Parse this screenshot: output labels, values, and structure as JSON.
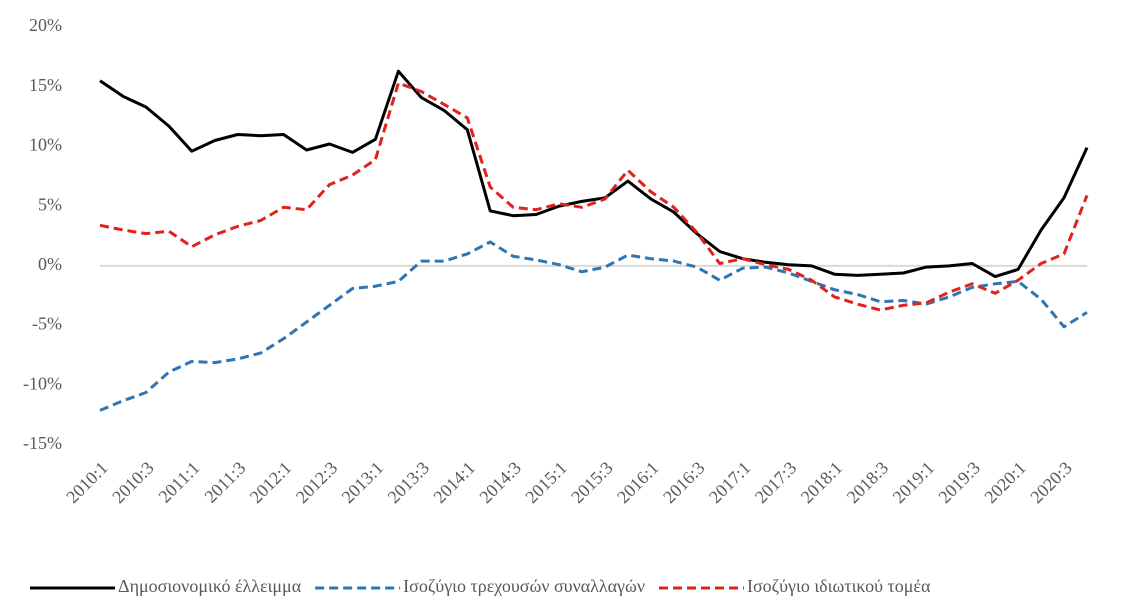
{
  "chart_data": {
    "type": "line",
    "categories": [
      "2010:1",
      null,
      "2010:3",
      null,
      "2011:1",
      null,
      "2011:3",
      null,
      "2012:1",
      null,
      "2012:3",
      null,
      "2013:1",
      null,
      "2013:3",
      null,
      "2014:1",
      null,
      "2014:3",
      null,
      "2015:1",
      null,
      "2015:3",
      null,
      "2016:1",
      null,
      "2016:3",
      null,
      "2017:1",
      null,
      "2017:3",
      null,
      "2018:1",
      null,
      "2018:3",
      null,
      "2019:1",
      null,
      "2019:3",
      null,
      "2020:1",
      null,
      "2020:3",
      null
    ],
    "series": [
      {
        "name": "Δημοσιονομικό έλλειμμα",
        "color": "#000000",
        "dashed": false,
        "values": [
          15.5,
          14.2,
          13.3,
          11.7,
          9.6,
          10.5,
          11.0,
          10.9,
          11.0,
          9.7,
          10.2,
          9.5,
          10.6,
          16.3,
          14.1,
          13.0,
          11.4,
          4.6,
          4.2,
          4.3,
          5.0,
          5.4,
          5.7,
          7.1,
          5.6,
          4.5,
          2.7,
          1.2,
          0.6,
          0.3,
          0.1,
          0.0,
          -0.7,
          -0.8,
          -0.7,
          -0.6,
          -0.1,
          0.0,
          0.2,
          -0.9,
          -0.3,
          3.0,
          5.7,
          9.9
        ]
      },
      {
        "name": "Ισοζύγιο τρεχουσών συναλλαγών",
        "color": "#2e75b6",
        "dashed": true,
        "values": [
          -12.1,
          -11.3,
          -10.6,
          -8.9,
          -8.0,
          -8.1,
          -7.8,
          -7.3,
          -6.1,
          -4.7,
          -3.3,
          -1.9,
          -1.7,
          -1.3,
          0.4,
          0.4,
          1.0,
          2.0,
          0.8,
          0.5,
          0.1,
          -0.5,
          -0.1,
          0.9,
          0.6,
          0.4,
          -0.1,
          -1.2,
          -0.2,
          -0.1,
          -0.6,
          -1.3,
          -2.0,
          -2.4,
          -3.0,
          -2.9,
          -3.2,
          -2.6,
          -1.8,
          -1.5,
          -1.3,
          -2.8,
          -5.1,
          -3.9
        ]
      },
      {
        "name": "Ισοζύγιο ιδιωτικού τομέα",
        "color": "#e0211d",
        "dashed": true,
        "values": [
          3.4,
          3.0,
          2.7,
          2.9,
          1.6,
          2.6,
          3.3,
          3.8,
          4.9,
          4.7,
          6.8,
          7.6,
          8.9,
          15.3,
          14.6,
          13.5,
          12.4,
          6.6,
          4.9,
          4.7,
          5.2,
          4.9,
          5.6,
          8.0,
          6.2,
          4.9,
          2.8,
          0.2,
          0.6,
          0.1,
          -0.3,
          -1.2,
          -2.6,
          -3.2,
          -3.7,
          -3.3,
          -3.1,
          -2.2,
          -1.5,
          -2.3,
          -1.2,
          0.2,
          1.0,
          5.9
        ]
      }
    ],
    "ylim": [
      -15,
      20
    ],
    "yticks": [
      {
        "value": -15,
        "label": "-15%"
      },
      {
        "value": -10,
        "label": "-10%"
      },
      {
        "value": -5,
        "label": "-5%"
      },
      {
        "value": 0,
        "label": "0%"
      },
      {
        "value": 5,
        "label": "5%"
      },
      {
        "value": 10,
        "label": "10%"
      },
      {
        "value": 15,
        "label": "15%"
      },
      {
        "value": 20,
        "label": "20%"
      }
    ],
    "legend": "bottom"
  }
}
